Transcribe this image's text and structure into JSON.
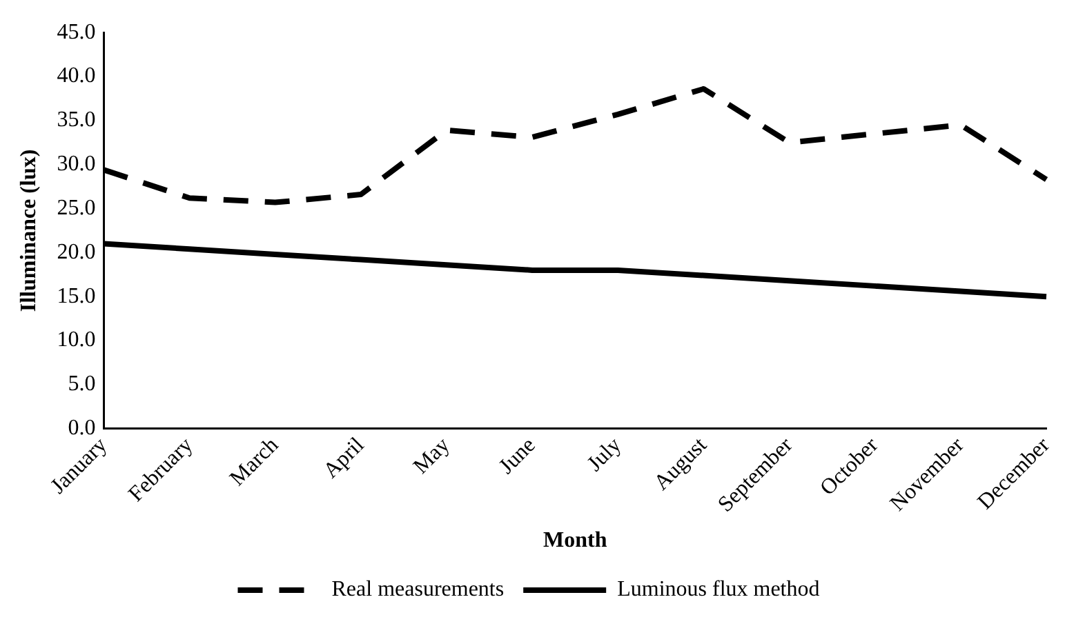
{
  "chart_data": {
    "type": "line",
    "xlabel": "Month",
    "ylabel": "Illuminance (lux)",
    "categories": [
      "January",
      "February",
      "March",
      "April",
      "May",
      "June",
      "July",
      "August",
      "September",
      "October",
      "November",
      "December"
    ],
    "series": [
      {
        "name": "Real measurements",
        "color": "#000000",
        "line_style": "dashed",
        "values": [
          29.4,
          26.2,
          25.7,
          26.6,
          33.9,
          33.1,
          35.7,
          38.6,
          32.5,
          33.5,
          34.5,
          28.3
        ]
      },
      {
        "name": "Luminous flux method",
        "color": "#000000",
        "line_style": "solid",
        "values": [
          21.0,
          20.4,
          19.8,
          19.2,
          18.6,
          18.0,
          18.0,
          17.4,
          16.8,
          16.2,
          15.6,
          15.0
        ]
      }
    ],
    "ylim": [
      0,
      45
    ],
    "yticks": [
      {
        "value": 0,
        "label": "0.0"
      },
      {
        "value": 5,
        "label": "5.0"
      },
      {
        "value": 10,
        "label": "10.0"
      },
      {
        "value": 15,
        "label": "15.0"
      },
      {
        "value": 20,
        "label": "20.0"
      },
      {
        "value": 25,
        "label": "25.0"
      },
      {
        "value": 30,
        "label": "30.0"
      },
      {
        "value": 35,
        "label": "35.0"
      },
      {
        "value": 40,
        "label": "40.0"
      },
      {
        "value": 45,
        "label": "45.0"
      }
    ],
    "grid": false,
    "legend": "bottom",
    "marker": "none"
  }
}
